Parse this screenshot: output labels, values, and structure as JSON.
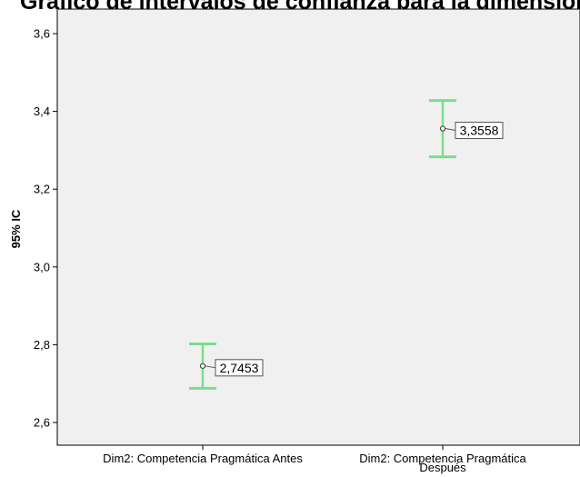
{
  "chart_data": {
    "type": "errorbar",
    "title": "Gráfico de intervalos de confianza para la dimensión competencia pragmática",
    "ylabel": "95% IC",
    "xlabel": "",
    "ylim": [
      2.58,
      3.66
    ],
    "yticks": [
      2.6,
      2.8,
      3.0,
      3.2,
      3.4,
      3.6
    ],
    "ytick_labels": [
      "2,6",
      "2,8",
      "3,0",
      "3,2",
      "3,4",
      "3,6"
    ],
    "categories": [
      [
        "Dim2: Competencia Pragmática Antes"
      ],
      [
        "Dim2: Competencia Pragmática",
        "Después"
      ]
    ],
    "means": [
      2.7453,
      3.3558
    ],
    "lower": [
      2.688,
      3.283
    ],
    "upper": [
      2.802,
      3.428
    ],
    "mean_labels": [
      "2,7453",
      "3,3558"
    ],
    "grid": false,
    "colors": {
      "errorbar": "#7ddc8e",
      "plot_bg": "#f0f0f0",
      "axis": "#000000"
    }
  }
}
